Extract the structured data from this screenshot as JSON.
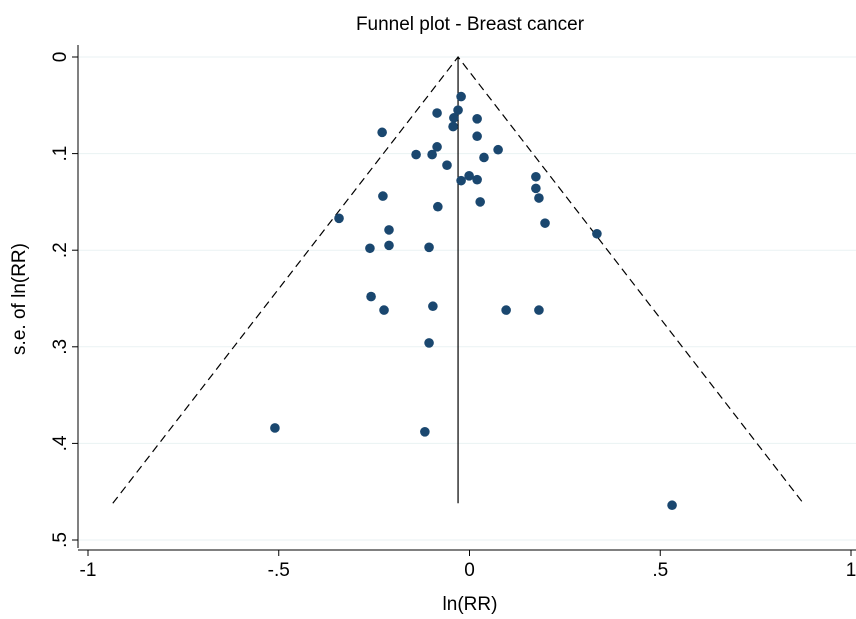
{
  "chart_data": {
    "type": "scatter",
    "title": "Funnel plot - Breast cancer",
    "x_label": "ln(RR)",
    "y_label": "s.e. of ln(RR)",
    "color": "#1a476f",
    "grid": true,
    "y_reversed": true,
    "xlim": [
      -1,
      1
    ],
    "ylim": [
      0,
      0.5
    ],
    "xticks": [
      -1,
      {
        "value": -0.5,
        "label": "-.5"
      },
      0,
      {
        "value": 0.5,
        "label": ".5"
      },
      1
    ],
    "yticks": [
      0,
      {
        "value": 0.1,
        "label": ".1"
      },
      {
        "value": 0.2,
        "label": ".2"
      },
      {
        "value": 0.3,
        "label": ".3"
      },
      {
        "value": 0.4,
        "label": ".4"
      },
      {
        "value": 0.5,
        "label": ".5"
      }
    ],
    "x": [
      -0.022,
      -0.085,
      -0.03,
      -0.041,
      -0.043,
      0.02,
      0.02,
      -0.229,
      -0.085,
      0.075,
      -0.14,
      -0.098,
      0.038,
      -0.059,
      -0.001,
      -0.022,
      0.02,
      0.174,
      0.174,
      0.182,
      0.028,
      -0.227,
      -0.083,
      -0.342,
      0.198,
      0.334,
      -0.211,
      -0.211,
      -0.261,
      -0.106,
      -0.258,
      -0.224,
      -0.096,
      0.096,
      0.182,
      -0.106,
      -0.51,
      -0.117,
      0.531
    ],
    "values": [
      0.041,
      0.058,
      0.055,
      0.063,
      0.072,
      0.064,
      0.082,
      0.078,
      0.093,
      0.096,
      0.101,
      0.101,
      0.104,
      0.112,
      0.123,
      0.128,
      0.127,
      0.124,
      0.136,
      0.146,
      0.15,
      0.144,
      0.155,
      0.167,
      0.172,
      0.183,
      0.179,
      0.195,
      0.198,
      0.197,
      0.248,
      0.262,
      0.258,
      0.262,
      0.262,
      0.296,
      0.384,
      0.388,
      0.464
    ],
    "lines": [
      {
        "x": [
          -0.935,
          -0.03,
          0.875
        ],
        "y": [
          0.462,
          0,
          0.462
        ],
        "dashed": true
      },
      {
        "x": [
          -0.03,
          -0.03
        ],
        "y": [
          0,
          0.462
        ],
        "dashed": false
      }
    ]
  }
}
